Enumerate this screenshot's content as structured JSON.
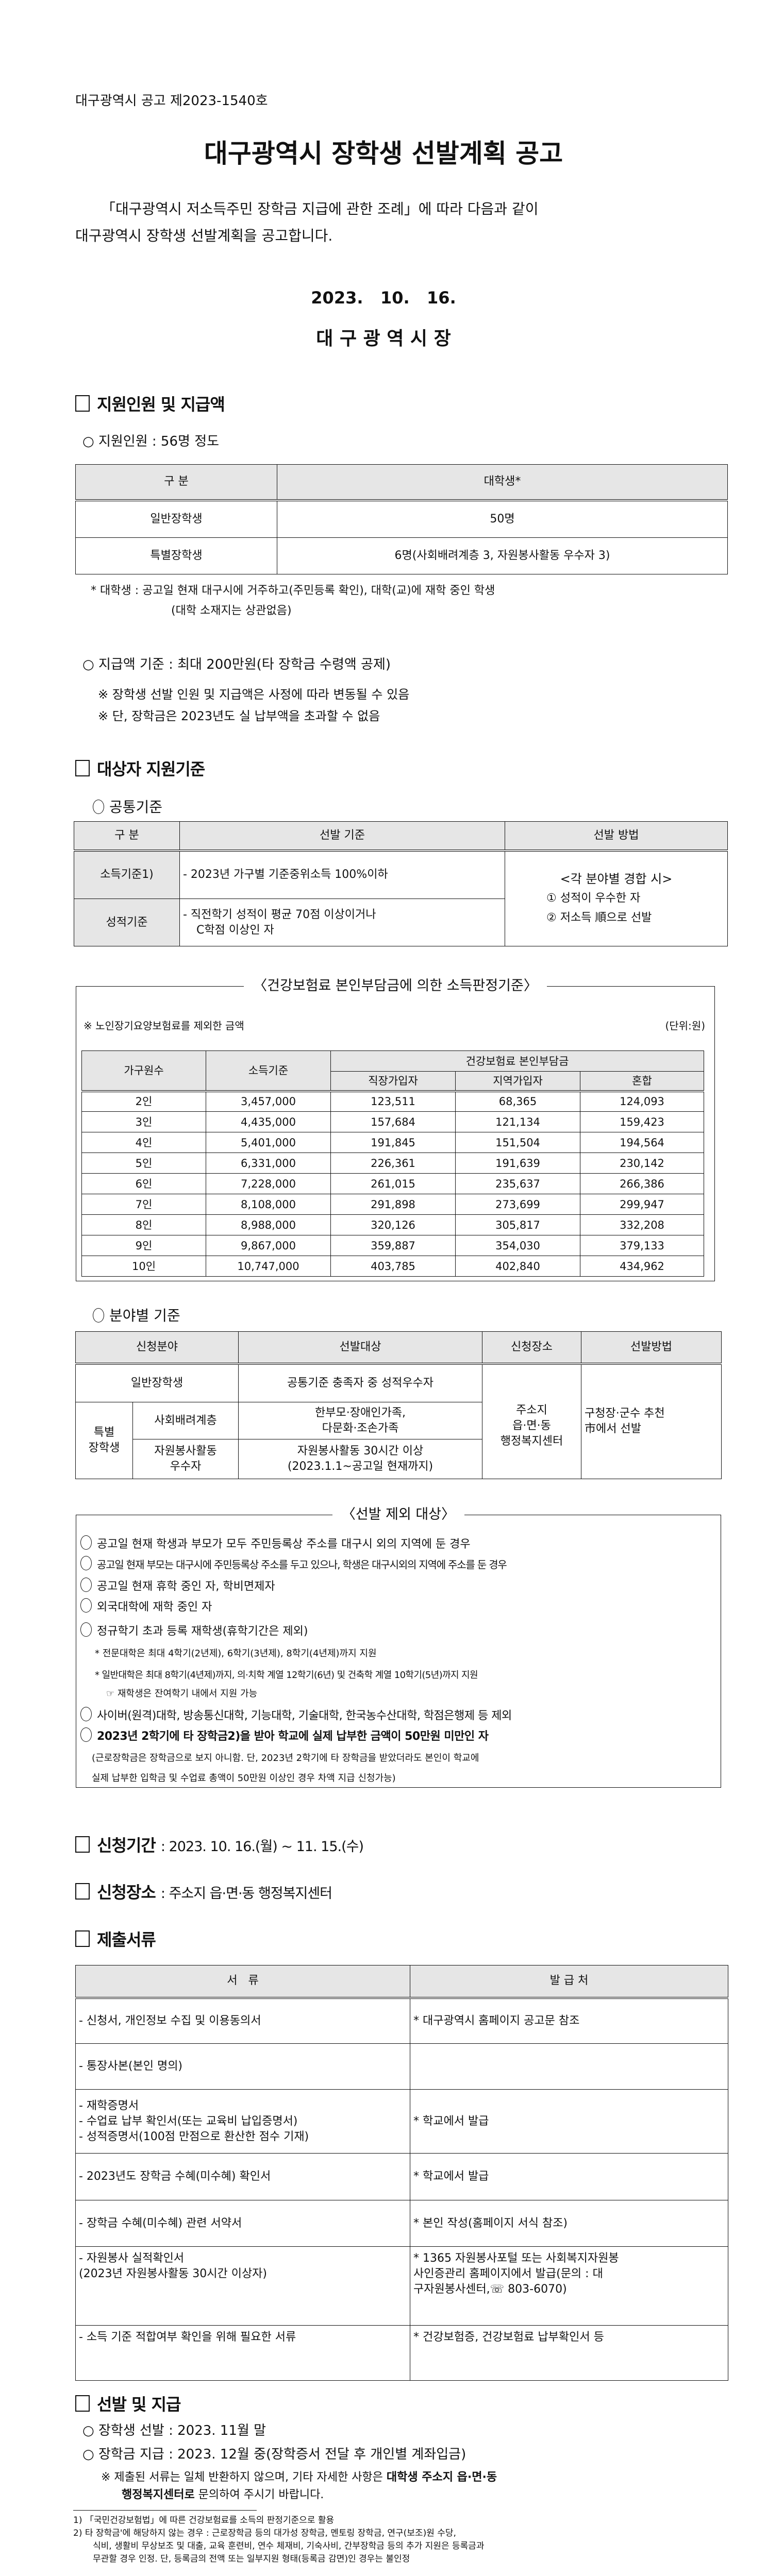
{
  "header": {
    "notice_no": "대구광역시 공고 제2023-1540호",
    "title": "대구광역시 장학생 선발계획 공고",
    "intro_line1": "「대구광역시 저소득주민 장학금 지급에 관한 조례」에 따라 다음과 같이",
    "intro_line2": "대구광역시 장학생 선발계획을 공고합니다.",
    "date": "2023.   10.   16.",
    "issuer": "대 구 광 역 시 장"
  },
  "section1": {
    "heading": "지원인원 및 지급액",
    "bullet_count": "○ 지원인원 : 56명 정도",
    "table": {
      "headers": [
        "구 분",
        "대학생*"
      ],
      "rows": [
        [
          "일반장학생",
          "50명"
        ],
        [
          "특별장학생",
          "6명(사회배려계층 3, 자원봉사활동 우수자 3)"
        ]
      ]
    },
    "note_line1": "* 대학생 : 공고일 현재 대구시에 거주하고(주민등록 확인), 대학(교)에 재학 중인 학생",
    "note_line2": "(대학 소재지는 상관없음)",
    "bullet_amount": "○ 지급액 기준 : 최대 200만원(타 장학금 수령액 공제)",
    "remark1": "※ 장학생 선발 인원 및 지급액은 사정에 따라 변동될 수 있음",
    "remark2": "※ 단, 장학금은 2023년도 실 납부액을 초과할 수 없음"
  },
  "section2": {
    "heading": "대상자 지원기준",
    "common_title": "공통기준",
    "common_table": {
      "headers": [
        "구 분",
        "선발 기준",
        "선발 방법"
      ],
      "income_label": "소득기준1)",
      "income_criteria": "- 2023년 가구별 기준중위소득 100%이하",
      "grade_label": "성적기준",
      "grade_criteria_1": "- 직전학기 성적이 평균 70점 이상이거나",
      "grade_criteria_2": "C학점 이상인 자",
      "method_1": "<각 분야별 경합 시>",
      "method_2": "① 성적이 우수한 자",
      "method_3": "② 저소득 順으로 선발"
    },
    "income_box": {
      "title": "〈건강보험료 본인부담금에 의한 소득판정기준〉",
      "note": "※ 노인장기요양보험료를 제외한 금액",
      "unit": "(단위:원)",
      "headers": {
        "household": "가구원수",
        "income": "소득기준",
        "group": "건강보험료 본인부담금",
        "sub": [
          "직장가입자",
          "지역가입자",
          "혼합"
        ]
      },
      "rows": [
        [
          "2인",
          "3,457,000",
          "123,511",
          "68,365",
          "124,093"
        ],
        [
          "3인",
          "4,435,000",
          "157,684",
          "121,134",
          "159,423"
        ],
        [
          "4인",
          "5,401,000",
          "191,845",
          "151,504",
          "194,564"
        ],
        [
          "5인",
          "6,331,000",
          "226,361",
          "191,639",
          "230,142"
        ],
        [
          "6인",
          "7,228,000",
          "261,015",
          "235,637",
          "266,386"
        ],
        [
          "7인",
          "8,108,000",
          "291,898",
          "273,699",
          "299,947"
        ],
        [
          "8인",
          "8,988,000",
          "320,126",
          "305,817",
          "332,208"
        ],
        [
          "9인",
          "9,867,000",
          "359,887",
          "354,030",
          "379,133"
        ],
        [
          "10인",
          "10,747,000",
          "403,785",
          "402,840",
          "434,962"
        ]
      ]
    },
    "field_title": "분야별 기준",
    "field_table": {
      "headers": [
        "신청분야",
        "선발대상",
        "신청장소",
        "선발방법"
      ],
      "general_label": "일반장학생",
      "general_target": "공통기준 충족자 중 성적우수자",
      "special_label": "특별\n장학생",
      "social_label": "사회배려계층",
      "social_target": "한부모·장애인가족,\n다문화·조손가족",
      "volunteer_label": "자원봉사활동\n우수자",
      "volunteer_target": "자원봉사활동 30시간 이상\n(2023.1.1~공고일 현재까지)",
      "place": "주소지\n읍·면·동\n행정복지센터",
      "method": "구청장·군수 추천\n市에서 선발"
    },
    "exclusion_box": {
      "title": "〈선발 제외 대상〉",
      "items": [
        "공고일 현재 학생과 부모가 모두 주민등록상 주소를 대구시 외의 지역에 둔 경우",
        "공고일 현재 부모는 대구시에 주민등록상 주소를 두고 있으나, 학생은 대구시외의 지역에 주소를 둔 경우",
        "공고일 현재 휴학 중인 자, 학비면제자",
        "외국대학에 재학 중인 자",
        "정규학기 초과 등록 재학생(휴학기간은 제외)"
      ],
      "sub1": "* 전문대학은 최대 4학기(2년제), 6학기(3년제), 8학기(4년제)까지 지원",
      "sub2": "* 일반대학은 최대 8학기(4년제)까지, 의·치학 계열 12학기(6년) 및 건축학 계열 10학기(5년)까지 지원",
      "sub3": "☞ 재학생은 잔여학기 내에서 지원 가능",
      "item6": "사이버(원격)대학, 방송통신대학, 기능대학, 기술대학, 한국농수산대학, 학점은행제 등 제외",
      "item7": "2023년 2학기에 타 장학금2)을 받아 학교에 실제 납부한 금액이 50만원 미만인 자",
      "paren1": "(근로장학금은 장학금으로 보지 아니함. 단, 2023년 2학기에 타 장학금을 받았더라도 본인이 학교에",
      "paren2": "실제 납부한 입학금 및 수업료 총액이 50만원 이상인 경우 차액 지급 신청가능)"
    }
  },
  "section3": {
    "heading": "신청기간",
    "value": ": 2023. 10. 16.(월) ~ 11. 15.(수)"
  },
  "section4": {
    "heading": "신청장소",
    "value": ": 주소지 읍·면·동 행정복지센터"
  },
  "section5": {
    "heading": "제출서류",
    "headers": [
      "서   류",
      "발 급 처"
    ],
    "rows": [
      [
        "- 신청서, 개인정보 수집 및 이용동의서",
        "* 대구광역시 홈페이지 공고문 참조"
      ],
      [
        "- 통장사본(본인 명의)",
        ""
      ],
      [
        "- 재학증명서\n- 수업료 납부 확인서(또는 교육비 납입증명서)\n- 성적증명서(100점 만점으로 환산한 점수 기재)",
        "* 학교에서 발급"
      ],
      [
        "- 2023년도 장학금 수혜(미수혜) 확인서",
        "* 학교에서 발급"
      ],
      [
        "- 장학금 수혜(미수혜) 관련 서약서",
        "* 본인 작성(홈페이지 서식 참조)"
      ],
      [
        "- 자원봉사 실적확인서\n  (2023년 자원봉사활동 30시간 이상자)",
        "* 1365 자원봉사포털 또는 사회복지자원봉\n  사인증관리 홈페이지에서 발급(문의 : 대\n  구자원봉사센터,☏ 803-6070)"
      ],
      [
        "- 소득 기준 적합여부 확인을 위해 필요한 서류",
        "* 건강보험증, 건강보험료 납부확인서 등"
      ]
    ]
  },
  "section6": {
    "heading": "선발 및 지급",
    "item1": "○ 장학생 선발 : 2023. 11월 말",
    "item2": "○ 장학금 지급 : 2023. 12월 중(장학증서 전달 후 개인별 계좌입금)",
    "note_prefix": "※ 제출된 서류는 일체 반환하지 않으며, 기타 자세한 사항은 ",
    "note_bold": "대학생 주소지 읍·면·동",
    "note_line2_bold": "행정복지센터로",
    "note_line2_rest": " 문의하여 주시기 바랍니다."
  },
  "footnotes": {
    "fn1": "1) 「국민건강보험법」에 따른 건강보험료를 소득의 판정기준으로 활용",
    "fn2_line1": "2) 타 장학금'에 해당하지 않는 경우 : 근로장학금 등의 대가성 장학금, 멘토링 장학금, 연구(보조)원 수당,",
    "fn2_line2": "식비, 생활비 무상보조 및 대출, 교육 훈련비, 연수 체재비, 기숙사비, 간부장학금 등의 추가 지원은 등록금과",
    "fn2_line3": "무관할 경우 인정. 단, 등록금의 전액 또는 일부지원 형태(등록금 감면)인 경우는 불인정"
  }
}
